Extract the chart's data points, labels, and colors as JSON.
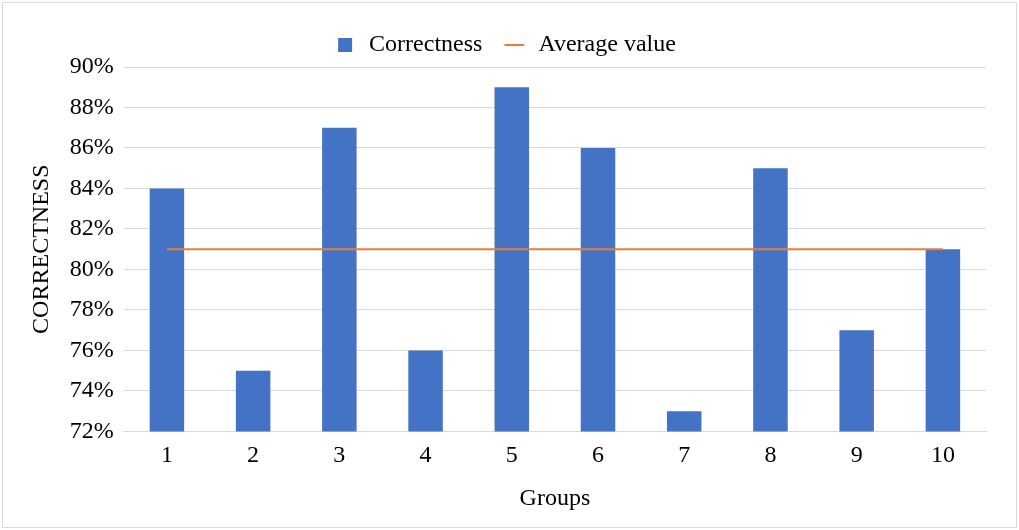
{
  "chart_data": {
    "type": "bar",
    "xlabel": "Groups",
    "ylabel": "CORRECTNESS",
    "categories": [
      "1",
      "2",
      "3",
      "4",
      "5",
      "6",
      "7",
      "8",
      "9",
      "10"
    ],
    "series": [
      {
        "name": "Correctness",
        "color": "#4472c4",
        "values": [
          84,
          75,
          87,
          76,
          89,
          86,
          73,
          85,
          77,
          81
        ]
      },
      {
        "name": "Average value",
        "type": "line",
        "color": "#ed7d31",
        "values": [
          81,
          81,
          81,
          81,
          81,
          81,
          81,
          81,
          81,
          81
        ]
      }
    ],
    "ylim": [
      72,
      90
    ],
    "yticks": [
      {
        "value": 72,
        "label": "72%"
      },
      {
        "value": 74,
        "label": "74%"
      },
      {
        "value": 76,
        "label": "76%"
      },
      {
        "value": 78,
        "label": "78%"
      },
      {
        "value": 80,
        "label": "80%"
      },
      {
        "value": 82,
        "label": "82%"
      },
      {
        "value": 84,
        "label": "84%"
      },
      {
        "value": 86,
        "label": "86%"
      },
      {
        "value": 88,
        "label": "88%"
      },
      {
        "value": 90,
        "label": "90%"
      }
    ],
    "grid": "y",
    "legend": "top",
    "marker": "none"
  }
}
